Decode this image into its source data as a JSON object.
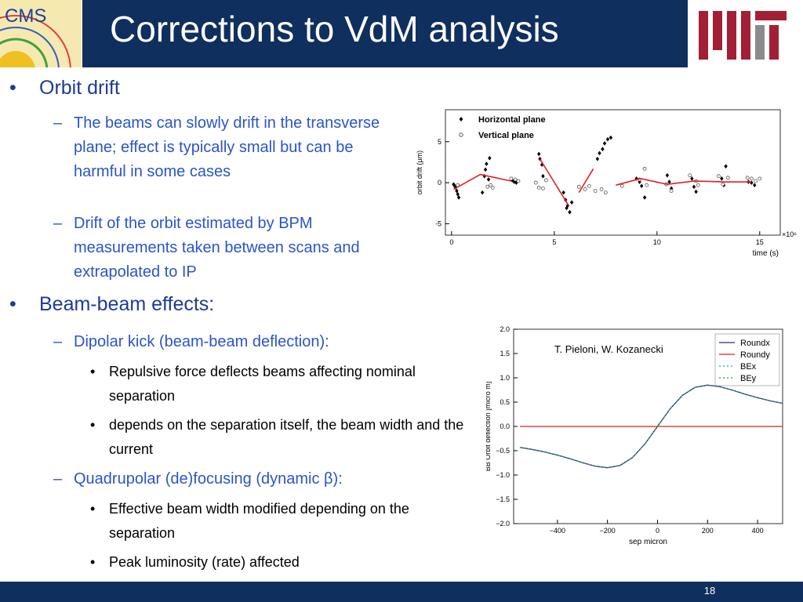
{
  "header": {
    "title": "Corrections to VdM analysis",
    "logo": "CMS"
  },
  "bullets": [
    {
      "text": "Orbit drift",
      "sub": [
        {
          "text": "The beams can slowly drift in the transverse plane; effect is typically small but can be harmful in some cases"
        },
        {
          "text": "Drift of the orbit estimated by BPM measurements taken between scans and extrapolated to IP"
        }
      ]
    },
    {
      "text": "Beam-beam effects:",
      "sub": [
        {
          "text": "Dipolar kick (beam-beam deflection):",
          "sub": [
            "Repulsive force deflects beams affecting nominal separation",
            "depends on the separation itself, the beam width and the current"
          ]
        },
        {
          "text": "Quadrupolar (de)focusing (dynamic β):",
          "sub": [
            "Effective beam width modified depending on the separation",
            "Peak luminosity (rate) affected"
          ]
        }
      ]
    }
  ],
  "chart_data": [
    {
      "type": "scatter",
      "xlabel": "time (s)",
      "ylabel": "orbit drift (μm)",
      "x_scale_label": "×10⁶",
      "xlim": [
        -0.3,
        16
      ],
      "ylim": [
        -6.4,
        8.9
      ],
      "xticks": [
        0,
        5,
        10,
        15
      ],
      "yticks": [
        -5,
        0,
        5
      ],
      "legend": "upper left",
      "series": [
        {
          "name": "Horizontal plane",
          "color": "#000000",
          "style": "filled-diamond",
          "x": [
            0.1,
            0.15,
            0.2,
            0.25,
            0.3,
            0.35,
            1.5,
            1.6,
            1.65,
            1.7,
            1.8,
            1.85,
            2.95,
            3.05,
            3.15,
            4.25,
            4.3,
            4.4,
            4.45,
            5.45,
            5.55,
            5.6,
            5.65,
            5.75,
            5.85,
            7.1,
            7.2,
            7.35,
            7.45,
            7.6,
            7.75,
            9.0,
            9.15,
            9.25,
            9.4,
            10.5,
            10.6,
            10.7,
            11.7,
            11.8,
            11.9,
            13.15,
            13.25,
            13.35,
            14.45,
            14.6,
            14.75
          ],
          "values": [
            -0.2,
            -0.4,
            -0.6,
            -1.0,
            -1.4,
            -1.8,
            -1.2,
            0.8,
            1.6,
            2.3,
            0.4,
            3.0,
            0.3,
            0.1,
            0.0,
            3.5,
            2.9,
            2.2,
            0.8,
            -1.2,
            -2.1,
            -3.1,
            -2.8,
            -3.6,
            -2.4,
            2.9,
            3.6,
            4.1,
            4.8,
            5.3,
            5.5,
            0.5,
            0.1,
            -0.4,
            -1.8,
            0.9,
            0.1,
            -0.7,
            0.5,
            -0.5,
            -1.1,
            0.5,
            -0.3,
            2.0,
            0.1,
            0.0,
            -0.3
          ]
        },
        {
          "name": "Vertical plane",
          "color": "#555555",
          "style": "open-circle",
          "x": [
            0.3,
            1.75,
            1.9,
            2.0,
            2.9,
            3.1,
            3.25,
            4.1,
            4.25,
            4.45,
            4.6,
            6.2,
            6.5,
            6.7,
            7.0,
            7.3,
            7.5,
            8.3,
            9.15,
            9.4,
            9.5,
            10.45,
            10.7,
            11.6,
            11.9,
            12.0,
            13.0,
            13.2,
            13.45,
            14.4,
            14.6,
            14.8,
            15.0
          ],
          "values": [
            -0.3,
            -0.5,
            -0.3,
            -0.6,
            0.5,
            0.4,
            0.2,
            0.0,
            -0.6,
            -0.7,
            0.3,
            -0.5,
            -0.8,
            -0.4,
            -1.0,
            -0.8,
            -1.2,
            -0.4,
            0.4,
            1.7,
            -0.3,
            -0.2,
            -1.0,
            0.9,
            0.2,
            -0.3,
            0.8,
            -0.2,
            0.6,
            0.6,
            0.5,
            0.2,
            0.5
          ]
        },
        {
          "color": "#e02020",
          "style": "line",
          "x": [
            0.1,
            1.4,
            2.9,
            null,
            4.3,
            5.7,
            null,
            6.2,
            6.9,
            null,
            8.0,
            9.2,
            10.5,
            11.8,
            13.3,
            14.6
          ],
          "values": [
            -0.8,
            1.0,
            0.2,
            null,
            2.9,
            -2.8,
            null,
            -1.2,
            1.7,
            null,
            -0.3,
            0.5,
            -0.2,
            0.2,
            0.1,
            0.1
          ]
        }
      ]
    },
    {
      "type": "line",
      "xlabel": "sep micron",
      "ylabel": "BB Orbit deflection [micro m]",
      "annotation": "T. Pieloni, W. Kozanecki",
      "xlim": [
        -575,
        500
      ],
      "ylim": [
        -2,
        2
      ],
      "legend": "upper right",
      "xticks": [
        {
          "value": -400,
          "label": "−400"
        },
        {
          "value": -200,
          "label": "−200"
        },
        0,
        200,
        400
      ],
      "yticks": [
        {
          "value": -2,
          "label": "−2.0"
        },
        {
          "value": -1.5,
          "label": "−1.5"
        },
        {
          "value": -1,
          "label": "−1.0"
        },
        {
          "value": -0.5,
          "label": "−0.5"
        },
        {
          "value": 0,
          "label": "0.0"
        },
        {
          "value": 0.5,
          "label": "0.5"
        },
        {
          "value": 1,
          "label": "1.0"
        },
        {
          "value": 1.5,
          "label": "1.5"
        },
        {
          "value": 2,
          "label": "2.0"
        }
      ],
      "x": [
        -550,
        -500,
        -450,
        -400,
        -350,
        -300,
        -250,
        -200,
        -150,
        -100,
        -50,
        0,
        50,
        100,
        150,
        200,
        250,
        300,
        350,
        400,
        450,
        500
      ],
      "series": [
        {
          "name": "Roundx",
          "color": "#2b2b8a",
          "dash": "solid",
          "values": [
            -0.432,
            -0.475,
            -0.527,
            -0.59,
            -0.664,
            -0.745,
            -0.817,
            -0.85,
            -0.804,
            -0.641,
            -0.359,
            0,
            0.359,
            0.641,
            0.804,
            0.85,
            0.817,
            0.745,
            0.664,
            0.59,
            0.527,
            0.475
          ]
        },
        {
          "name": "Roundy",
          "color": "#e02020",
          "dash": "solid",
          "values": [
            0,
            0,
            0,
            0,
            0,
            0,
            0,
            0,
            0,
            0,
            0,
            0,
            0,
            0,
            0,
            0,
            0,
            0,
            0,
            0,
            0,
            0
          ]
        },
        {
          "name": "BEx",
          "color": "#2a9d9d",
          "dash": "dotted",
          "values": [
            -0.432,
            -0.475,
            -0.527,
            -0.59,
            -0.664,
            -0.745,
            -0.817,
            -0.85,
            -0.804,
            -0.641,
            -0.359,
            0,
            0.359,
            0.641,
            0.804,
            0.85,
            0.817,
            0.745,
            0.664,
            0.59,
            0.527,
            0.475
          ]
        },
        {
          "name": "BEy",
          "color": "#3a9a3a",
          "dash": "dotted",
          "values": [
            -0.432,
            -0.475,
            -0.527,
            -0.59,
            -0.664,
            -0.745,
            -0.817,
            -0.85,
            -0.804,
            -0.641,
            -0.359,
            0,
            0.359,
            0.641,
            0.804,
            0.85,
            0.817,
            0.745,
            0.664,
            0.59,
            0.527,
            0.475
          ]
        }
      ]
    }
  ],
  "footer": {
    "page": "18"
  }
}
